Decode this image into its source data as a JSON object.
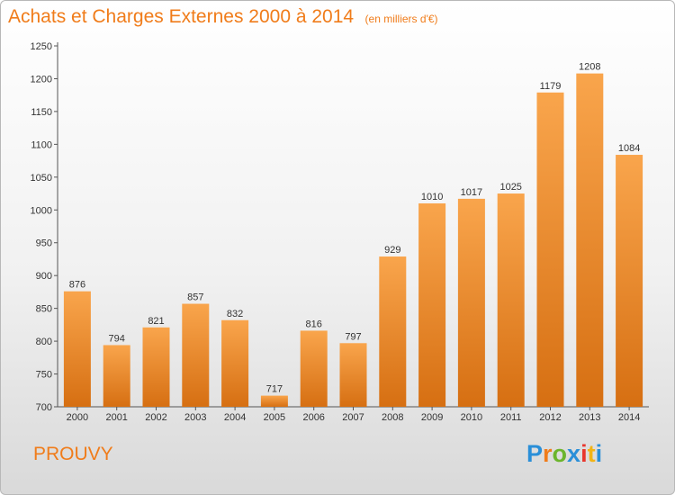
{
  "header": {
    "title": "Achats et Charges Externes 2000 à 2014",
    "unit": "(en milliers d'€)"
  },
  "commune": "PROUVY",
  "logo": {
    "text": "Proxiti",
    "letters": [
      "P",
      "r",
      "o",
      "x",
      "i",
      "t",
      "i"
    ],
    "colors": [
      "#2a8fd8",
      "#f07c1a",
      "#6cb52d",
      "#2a8fd8",
      "#e8362d",
      "#f2b416",
      "#2a8fd8"
    ]
  },
  "colors": {
    "accent": "#f07c1a",
    "bar_top": "#f9a54c",
    "bar_bottom": "#d66f12"
  },
  "chart_data": {
    "type": "bar",
    "title": "Achats et Charges Externes 2000 à 2014",
    "subtitle": "(en milliers d'€)",
    "categories": [
      "2000",
      "2001",
      "2002",
      "2003",
      "2004",
      "2005",
      "2006",
      "2007",
      "2008",
      "2009",
      "2010",
      "2011",
      "2012",
      "2013",
      "2014"
    ],
    "values": [
      876,
      794,
      821,
      857,
      832,
      717,
      816,
      797,
      929,
      1010,
      1017,
      1025,
      1179,
      1208,
      1084
    ],
    "ylim": [
      700,
      1250
    ],
    "yticks": [
      700,
      750,
      800,
      850,
      900,
      950,
      1000,
      1050,
      1100,
      1150,
      1200,
      1250
    ],
    "grid": false,
    "xlabel": "",
    "ylabel": ""
  }
}
